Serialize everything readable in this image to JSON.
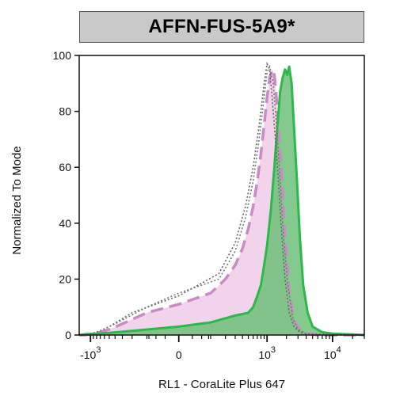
{
  "chart_data": {
    "type": "area",
    "title": "AFFN-FUS-5A9*",
    "xlabel": "RL1 - CoraLite Plus 647",
    "ylabel": "Normalized To Mode",
    "x_scale": "biexponential",
    "xlim": [
      -1500,
      30000
    ],
    "ylim": [
      0,
      100
    ],
    "y_ticks": [
      0,
      20,
      40,
      60,
      80,
      100
    ],
    "x_tick_labels": [
      {
        "value": -1000,
        "base": "-10",
        "exp": "3"
      },
      {
        "value": 0,
        "base": "0",
        "exp": ""
      },
      {
        "value": 1000,
        "base": "10",
        "exp": "3"
      },
      {
        "value": 10000,
        "base": "10",
        "exp": "4"
      }
    ],
    "grid": false,
    "legend": "none",
    "series": [
      {
        "style": "filled-green",
        "color": "#2db84b",
        "fill": "#6fbf7a",
        "x": [
          -1500,
          -1200,
          -800,
          -500,
          -200,
          0,
          100,
          200,
          300,
          400,
          500,
          600,
          700,
          800,
          900,
          1000,
          1150,
          1300,
          1450,
          1600,
          1750,
          1900,
          2050,
          2200,
          2400,
          2600,
          2900,
          3200,
          3600,
          4200,
          5000,
          7000,
          10000,
          20000,
          30000
        ],
        "values": [
          0,
          0.3,
          0.5,
          0.8,
          1.5,
          3,
          4.5,
          6,
          7,
          7.5,
          8,
          10,
          14,
          18,
          25,
          32,
          45,
          60,
          75,
          87,
          92,
          95,
          93,
          96,
          90,
          75,
          55,
          35,
          18,
          8,
          3,
          1,
          0.5,
          0.2,
          0
        ]
      },
      {
        "style": "filled-pink-dashed",
        "color": "#c98ac7",
        "fill": "#efcfe9",
        "x": [
          -1500,
          -1200,
          -900,
          -700,
          -500,
          -300,
          -100,
          0,
          100,
          200,
          300,
          400,
          500,
          600,
          700,
          800,
          900,
          1000,
          1100,
          1200,
          1300,
          1400,
          1550,
          1700,
          1900,
          2200,
          2600,
          3200,
          4000,
          6000,
          30000
        ],
        "values": [
          0,
          0,
          0.5,
          1,
          2,
          4,
          8,
          11,
          15,
          20,
          25,
          31,
          38,
          46,
          55,
          65,
          75,
          85,
          92,
          95,
          93,
          85,
          70,
          55,
          35,
          15,
          5,
          2,
          0.5,
          0,
          0
        ]
      },
      {
        "style": "dotted-1",
        "color": "#666666",
        "x": [
          -1500,
          -1100,
          -800,
          -500,
          -200,
          0,
          150,
          300,
          450,
          600,
          750,
          900,
          1000,
          1100,
          1200,
          1350,
          1500,
          1700,
          1900,
          2200,
          2600,
          3200,
          4500,
          30000
        ],
        "values": [
          0,
          0.3,
          1,
          3,
          8,
          14,
          22,
          33,
          46,
          60,
          75,
          90,
          97,
          95,
          85,
          70,
          55,
          35,
          20,
          8,
          3,
          1,
          0,
          0
        ]
      },
      {
        "style": "dotted-2",
        "color": "#777777",
        "x": [
          -1500,
          -1000,
          -700,
          -400,
          -100,
          0,
          150,
          300,
          450,
          600,
          750,
          900,
          1000,
          1100,
          1250,
          1400,
          1600,
          1800,
          2100,
          2500,
          3000,
          4000,
          30000
        ],
        "values": [
          0,
          0.4,
          1.5,
          4,
          10,
          15,
          20,
          30,
          42,
          55,
          70,
          85,
          94,
          96,
          90,
          75,
          55,
          35,
          18,
          6,
          2,
          0.5,
          0
        ]
      }
    ]
  }
}
